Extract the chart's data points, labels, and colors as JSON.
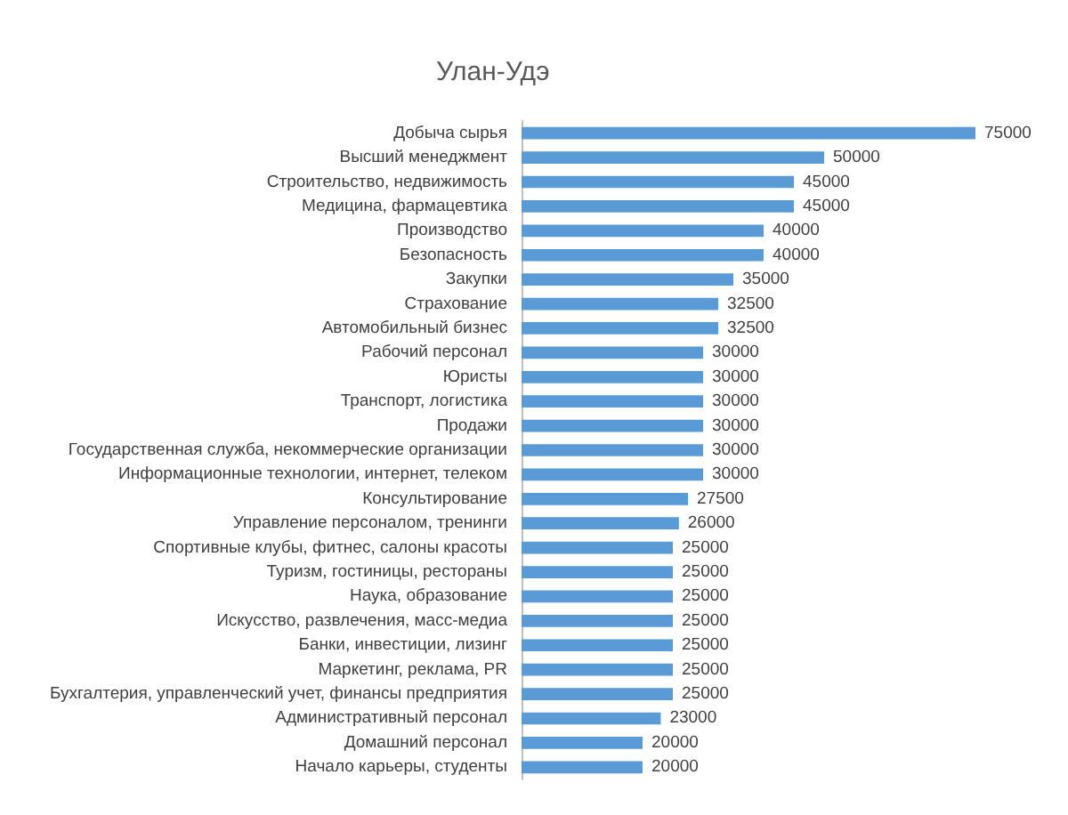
{
  "chart_data": {
    "type": "bar",
    "orientation": "horizontal",
    "title": "Улан-Удэ",
    "categories": [
      "Добыча сырья",
      "Высший менеджмент",
      "Строительство, недвижимость",
      "Медицина, фармацевтика",
      "Производство",
      "Безопасность",
      "Закупки",
      "Страхование",
      "Автомобильный бизнес",
      "Рабочий персонал",
      "Юристы",
      "Транспорт, логистика",
      "Продажи",
      "Государственная служба, некоммерческие организации",
      "Информационные технологии, интернет, телеком",
      "Консультирование",
      "Управление персоналом, тренинги",
      "Спортивные клубы, фитнес, салоны красоты",
      "Туризм, гостиницы, рестораны",
      "Наука, образование",
      "Искусство, развлечения, масс-медиа",
      "Банки, инвестиции, лизинг",
      "Маркетинг, реклама, PR",
      "Бухгалтерия, управленческий учет, финансы предприятия",
      "Административный персонал",
      "Домашний персонал",
      "Начало карьеры, студенты"
    ],
    "values": [
      75000,
      50000,
      45000,
      45000,
      40000,
      40000,
      35000,
      32500,
      32500,
      30000,
      30000,
      30000,
      30000,
      30000,
      30000,
      27500,
      26000,
      25000,
      25000,
      25000,
      25000,
      25000,
      25000,
      25000,
      23000,
      20000,
      20000
    ],
    "color": "#5b9bd5",
    "data_labels": true
  }
}
